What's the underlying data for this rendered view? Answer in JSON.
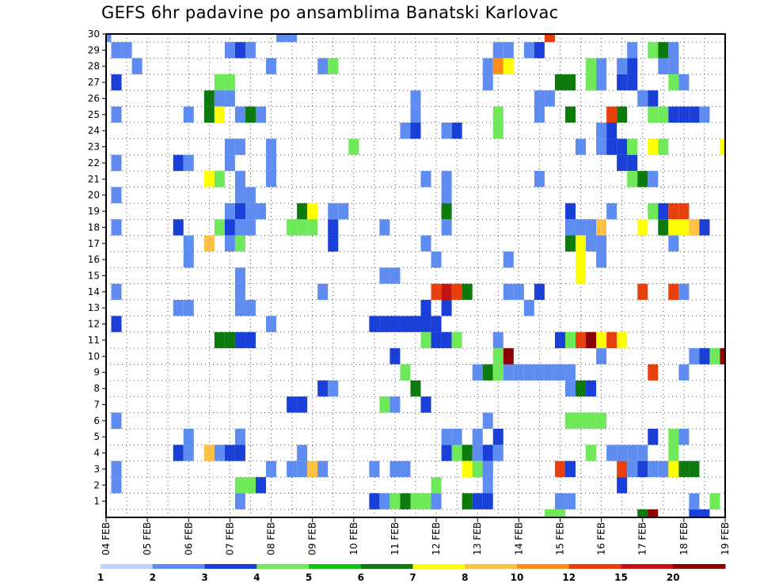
{
  "title": "GEFS 6hr padavine po ansamblima Banatski Karlovac",
  "chart_data": {
    "type": "heatmap",
    "title": "GEFS 6hr padavine po ansamblima Banatski Karlovac",
    "xlabel": "",
    "ylabel": "",
    "x_range": [
      0,
      60
    ],
    "y_range": [
      0,
      30
    ],
    "x_ticks": [
      "04 FEB",
      "05 FEB",
      "06 FEB",
      "07 FEB",
      "08 FEB",
      "09 FEB",
      "10 FEB",
      "11 FEB",
      "12 FEB",
      "13 FEB",
      "14 FEB",
      "15 FEB",
      "16 FEB",
      "17 FEB",
      "18 FEB",
      "19 FEB"
    ],
    "y_ticks": [
      "1",
      "2",
      "3",
      "4",
      "5",
      "6",
      "7",
      "8",
      "9",
      "10",
      "11",
      "12",
      "13",
      "14",
      "15",
      "16",
      "17",
      "18",
      "19",
      "20",
      "21",
      "22",
      "23",
      "24",
      "25",
      "26",
      "27",
      "28",
      "29",
      "30"
    ],
    "grid": true,
    "legend_position": "bottom",
    "colorbar": {
      "labels": [
        "1",
        "2",
        "3",
        "4",
        "5",
        "6",
        "7",
        "8",
        "10",
        "12",
        "15",
        "20"
      ],
      "colors": [
        "#bccfff",
        "#5f8cf0",
        "#1a3fd6",
        "#6fe85a",
        "#13c213",
        "#0c7a0c",
        "#ffff00",
        "#ffc145",
        "#ff8c1a",
        "#e8400c",
        "#c21212",
        "#8b0000"
      ]
    },
    "cells": [
      [
        0,
        30,
        1
      ],
      [
        1,
        29,
        1
      ],
      [
        2,
        29,
        1
      ],
      [
        3,
        28,
        1
      ],
      [
        1,
        27,
        2
      ],
      [
        1,
        25,
        1
      ],
      [
        1,
        22,
        1
      ],
      [
        1,
        20,
        1
      ],
      [
        1,
        18,
        1
      ],
      [
        1,
        14,
        1
      ],
      [
        1,
        12,
        2
      ],
      [
        1,
        6,
        1
      ],
      [
        1,
        3,
        1
      ],
      [
        1,
        2,
        1
      ],
      [
        7,
        22,
        2
      ],
      [
        8,
        22,
        1
      ],
      [
        7,
        18,
        2
      ],
      [
        7,
        13,
        1
      ],
      [
        8,
        13,
        1
      ],
      [
        7,
        4,
        2
      ],
      [
        8,
        4,
        1
      ],
      [
        8,
        5,
        1
      ],
      [
        8,
        25,
        1
      ],
      [
        8,
        17,
        1
      ],
      [
        8,
        16,
        1
      ],
      [
        10,
        26,
        5
      ],
      [
        10,
        25,
        5
      ],
      [
        10,
        21,
        6
      ],
      [
        10,
        17,
        7
      ],
      [
        10,
        4,
        7
      ],
      [
        11,
        27,
        3
      ],
      [
        11,
        26,
        1
      ],
      [
        11,
        25,
        6
      ],
      [
        11,
        21,
        3
      ],
      [
        11,
        18,
        3
      ],
      [
        11,
        11,
        5
      ],
      [
        11,
        4,
        1
      ],
      [
        12,
        29,
        1
      ],
      [
        12,
        27,
        3
      ],
      [
        12,
        26,
        1
      ],
      [
        12,
        23,
        1
      ],
      [
        12,
        22,
        1
      ],
      [
        12,
        19,
        1
      ],
      [
        12,
        18,
        2
      ],
      [
        12,
        17,
        1
      ],
      [
        12,
        11,
        5
      ],
      [
        12,
        4,
        2
      ],
      [
        13,
        29,
        2
      ],
      [
        13,
        25,
        1
      ],
      [
        13,
        23,
        1
      ],
      [
        13,
        21,
        1
      ],
      [
        13,
        20,
        1
      ],
      [
        13,
        19,
        2
      ],
      [
        13,
        18,
        1
      ],
      [
        13,
        17,
        3
      ],
      [
        13,
        15,
        1
      ],
      [
        13,
        14,
        1
      ],
      [
        13,
        13,
        1
      ],
      [
        13,
        11,
        2
      ],
      [
        13,
        5,
        1
      ],
      [
        13,
        4,
        2
      ],
      [
        13,
        2,
        3
      ],
      [
        13,
        1,
        1
      ],
      [
        14,
        29,
        1
      ],
      [
        14,
        25,
        5
      ],
      [
        14,
        20,
        1
      ],
      [
        14,
        19,
        1
      ],
      [
        14,
        18,
        1
      ],
      [
        14,
        13,
        1
      ],
      [
        14,
        11,
        2
      ],
      [
        14,
        2,
        3
      ],
      [
        15,
        25,
        1
      ],
      [
        15,
        19,
        1
      ],
      [
        15,
        2,
        2
      ],
      [
        16,
        28,
        1
      ],
      [
        16,
        23,
        1
      ],
      [
        16,
        22,
        1
      ],
      [
        16,
        21,
        1
      ],
      [
        16,
        12,
        1
      ],
      [
        16,
        3,
        1
      ],
      [
        17,
        30,
        1
      ],
      [
        18,
        30,
        1
      ],
      [
        18,
        18,
        3
      ],
      [
        18,
        7,
        2
      ],
      [
        18,
        3,
        1
      ],
      [
        19,
        18,
        3
      ],
      [
        19,
        19,
        5
      ],
      [
        19,
        7,
        2
      ],
      [
        19,
        4,
        1
      ],
      [
        19,
        3,
        1
      ],
      [
        20,
        19,
        6
      ],
      [
        20,
        3,
        7
      ],
      [
        20,
        18,
        3
      ],
      [
        21,
        3,
        1
      ],
      [
        21,
        28,
        1
      ],
      [
        21,
        14,
        1
      ],
      [
        21,
        8,
        2
      ],
      [
        22,
        28,
        3
      ],
      [
        22,
        18,
        2
      ],
      [
        22,
        8,
        1
      ],
      [
        22,
        17,
        2
      ],
      [
        22,
        19,
        1
      ],
      [
        23,
        19,
        1
      ],
      [
        24,
        23,
        3
      ],
      [
        26,
        12,
        2
      ],
      [
        27,
        12,
        2
      ],
      [
        28,
        12,
        2
      ],
      [
        29,
        12,
        2
      ],
      [
        30,
        12,
        2
      ],
      [
        31,
        12,
        2
      ],
      [
        27,
        18,
        1
      ],
      [
        27,
        15,
        1
      ],
      [
        28,
        15,
        1
      ],
      [
        27,
        7,
        3
      ],
      [
        28,
        7,
        1
      ],
      [
        26,
        1,
        2
      ],
      [
        27,
        1,
        1
      ],
      [
        28,
        1,
        3
      ],
      [
        29,
        1,
        5
      ],
      [
        30,
        1,
        3
      ],
      [
        31,
        1,
        3
      ],
      [
        26,
        3,
        1
      ],
      [
        28,
        3,
        1
      ],
      [
        29,
        3,
        1
      ],
      [
        28,
        10,
        2
      ],
      [
        29,
        9,
        3
      ],
      [
        30,
        8,
        5
      ],
      [
        29,
        24,
        1
      ],
      [
        30,
        24,
        2
      ],
      [
        30,
        25,
        1
      ],
      [
        30,
        26,
        1
      ],
      [
        31,
        21,
        1
      ],
      [
        31,
        11,
        3
      ],
      [
        31,
        13,
        2
      ],
      [
        31,
        17,
        1
      ],
      [
        32,
        16,
        1
      ],
      [
        32,
        12,
        2
      ],
      [
        32,
        11,
        2
      ],
      [
        32,
        14,
        9
      ],
      [
        33,
        14,
        10
      ],
      [
        34,
        14,
        9
      ],
      [
        33,
        11,
        2
      ],
      [
        33,
        13,
        2
      ],
      [
        34,
        11,
        3
      ],
      [
        31,
        7,
        2
      ],
      [
        32,
        2,
        3
      ],
      [
        32,
        1,
        1
      ],
      [
        33,
        20,
        1
      ],
      [
        33,
        19,
        5
      ],
      [
        33,
        21,
        1
      ],
      [
        33,
        18,
        1
      ],
      [
        34,
        24,
        2
      ],
      [
        33,
        24,
        1
      ],
      [
        34,
        4,
        3
      ],
      [
        35,
        4,
        5
      ],
      [
        36,
        4,
        1
      ],
      [
        36,
        5,
        1
      ],
      [
        37,
        4,
        2
      ],
      [
        35,
        3,
        6
      ],
      [
        36,
        3,
        3
      ],
      [
        37,
        3,
        1
      ],
      [
        34,
        5,
        1
      ],
      [
        33,
        4,
        2
      ],
      [
        33,
        5,
        1
      ],
      [
        35,
        14,
        5
      ],
      [
        35,
        1,
        5
      ],
      [
        36,
        1,
        2
      ],
      [
        37,
        1,
        2
      ],
      [
        36,
        9,
        1
      ],
      [
        37,
        9,
        5
      ],
      [
        38,
        9,
        3
      ],
      [
        39,
        9,
        1
      ],
      [
        38,
        10,
        3
      ],
      [
        39,
        10,
        12
      ],
      [
        38,
        11,
        1
      ],
      [
        37,
        6,
        1
      ],
      [
        37,
        3,
        1
      ],
      [
        37,
        2,
        1
      ],
      [
        38,
        9,
        3
      ],
      [
        38,
        5,
        2
      ],
      [
        38,
        4,
        1
      ],
      [
        39,
        29,
        1
      ],
      [
        38,
        29,
        1
      ],
      [
        37,
        28,
        1
      ],
      [
        37,
        27,
        1
      ],
      [
        38,
        28,
        8
      ],
      [
        39,
        28,
        6
      ],
      [
        39,
        16,
        1
      ],
      [
        38,
        24,
        3
      ],
      [
        38,
        25,
        3
      ],
      [
        39,
        14,
        1
      ],
      [
        40,
        14,
        1
      ],
      [
        40,
        9,
        1
      ],
      [
        41,
        9,
        1
      ],
      [
        42,
        9,
        1
      ],
      [
        43,
        9,
        1
      ],
      [
        44,
        9,
        1
      ],
      [
        41,
        13,
        1
      ],
      [
        41,
        29,
        1
      ],
      [
        42,
        29,
        2
      ],
      [
        42,
        26,
        1
      ],
      [
        42,
        25,
        1
      ],
      [
        43,
        26,
        1
      ],
      [
        42,
        14,
        2
      ],
      [
        42,
        21,
        1
      ],
      [
        43,
        0,
        3
      ],
      [
        44,
        0,
        3
      ],
      [
        43,
        30,
        9
      ],
      [
        44,
        27,
        5
      ],
      [
        45,
        27,
        5
      ],
      [
        44,
        11,
        2
      ],
      [
        45,
        11,
        3
      ],
      [
        46,
        11,
        9
      ],
      [
        47,
        11,
        11
      ],
      [
        48,
        11,
        6
      ],
      [
        49,
        11,
        9
      ],
      [
        50,
        11,
        6
      ],
      [
        45,
        19,
        2
      ],
      [
        45,
        18,
        1
      ],
      [
        46,
        18,
        1
      ],
      [
        45,
        17,
        5
      ],
      [
        46,
        17,
        6
      ],
      [
        46,
        16,
        6
      ],
      [
        46,
        15,
        6
      ],
      [
        45,
        25,
        5
      ],
      [
        46,
        23,
        1
      ],
      [
        45,
        9,
        1
      ],
      [
        45,
        8,
        1
      ],
      [
        46,
        8,
        5
      ],
      [
        47,
        8,
        2
      ],
      [
        45,
        6,
        3
      ],
      [
        46,
        6,
        3
      ],
      [
        47,
        6,
        3
      ],
      [
        48,
        6,
        3
      ],
      [
        44,
        3,
        9
      ],
      [
        45,
        3,
        2
      ],
      [
        44,
        1,
        1
      ],
      [
        45,
        1,
        1
      ],
      [
        47,
        27,
        3
      ],
      [
        48,
        27,
        1
      ],
      [
        47,
        28,
        3
      ],
      [
        48,
        28,
        1
      ],
      [
        48,
        24,
        1
      ],
      [
        49,
        24,
        2
      ],
      [
        49,
        25,
        9
      ],
      [
        50,
        25,
        5
      ],
      [
        48,
        23,
        1
      ],
      [
        49,
        23,
        2
      ],
      [
        50,
        23,
        2
      ],
      [
        50,
        22,
        2
      ],
      [
        51,
        22,
        2
      ],
      [
        47,
        18,
        1
      ],
      [
        48,
        18,
        7
      ],
      [
        48,
        17,
        1
      ],
      [
        47,
        17,
        1
      ],
      [
        48,
        16,
        1
      ],
      [
        48,
        10,
        1
      ],
      [
        47,
        4,
        3
      ],
      [
        49,
        19,
        1
      ],
      [
        51,
        28,
        2
      ],
      [
        50,
        27,
        2
      ],
      [
        51,
        27,
        2
      ],
      [
        50,
        28,
        1
      ],
      [
        51,
        29,
        1
      ],
      [
        51,
        23,
        3
      ],
      [
        51,
        21,
        3
      ],
      [
        52,
        21,
        5
      ],
      [
        53,
        21,
        1
      ],
      [
        52,
        26,
        1
      ],
      [
        52,
        18,
        6
      ],
      [
        49,
        4,
        1
      ],
      [
        50,
        3,
        9
      ],
      [
        51,
        3,
        1
      ],
      [
        50,
        4,
        1
      ],
      [
        51,
        4,
        1
      ],
      [
        50,
        2,
        2
      ],
      [
        52,
        4,
        1
      ],
      [
        52,
        3,
        2
      ],
      [
        53,
        29,
        3
      ],
      [
        54,
        29,
        5
      ],
      [
        55,
        29,
        1
      ],
      [
        54,
        28,
        1
      ],
      [
        55,
        28,
        1
      ],
      [
        55,
        27,
        3
      ],
      [
        56,
        27,
        1
      ],
      [
        53,
        26,
        2
      ],
      [
        53,
        25,
        3
      ],
      [
        54,
        25,
        3
      ],
      [
        55,
        25,
        2
      ],
      [
        56,
        25,
        2
      ],
      [
        57,
        25,
        2
      ],
      [
        58,
        25,
        1
      ],
      [
        53,
        23,
        6
      ],
      [
        54,
        23,
        3
      ],
      [
        53,
        19,
        3
      ],
      [
        54,
        19,
        2
      ],
      [
        55,
        19,
        9
      ],
      [
        56,
        19,
        9
      ],
      [
        54,
        18,
        5
      ],
      [
        55,
        18,
        6
      ],
      [
        56,
        18,
        6
      ],
      [
        57,
        18,
        7
      ],
      [
        58,
        18,
        2
      ],
      [
        55,
        17,
        1
      ],
      [
        52,
        14,
        9
      ],
      [
        55,
        14,
        9
      ],
      [
        56,
        14,
        1
      ],
      [
        53,
        9,
        9
      ],
      [
        56,
        9,
        1
      ],
      [
        53,
        5,
        2
      ],
      [
        55,
        5,
        3
      ],
      [
        56,
        5,
        1
      ],
      [
        55,
        4,
        3
      ],
      [
        53,
        3,
        1
      ],
      [
        54,
        3,
        1
      ],
      [
        55,
        3,
        6
      ],
      [
        56,
        3,
        5
      ],
      [
        57,
        3,
        5
      ],
      [
        57,
        10,
        1
      ],
      [
        58,
        10,
        2
      ],
      [
        59,
        10,
        3
      ],
      [
        60,
        10,
        11
      ],
      [
        59,
        1,
        3
      ],
      [
        57,
        1,
        1
      ],
      [
        52,
        0,
        5
      ],
      [
        53,
        0,
        12
      ],
      [
        57,
        0,
        2
      ],
      [
        58,
        0,
        2
      ],
      [
        60,
        23,
        6
      ]
    ]
  }
}
